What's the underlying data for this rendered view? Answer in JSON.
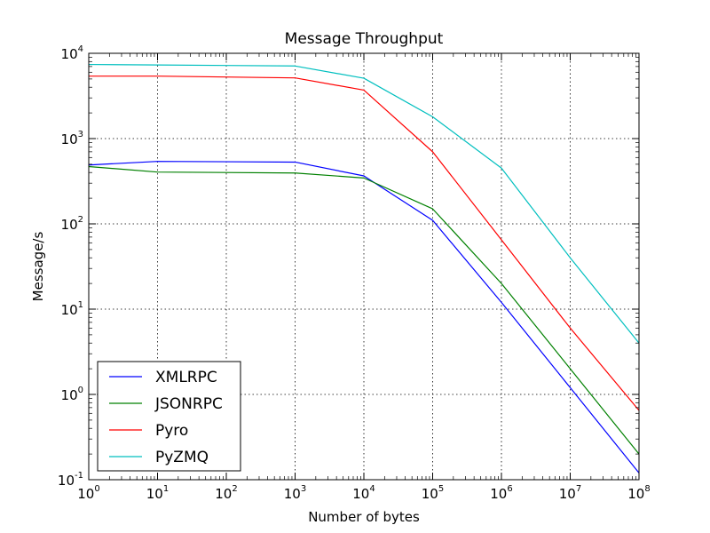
{
  "chart_data": {
    "type": "line",
    "title": "Message Throughput",
    "xlabel": "Number of bytes",
    "ylabel": "Message/s",
    "xscale": "log",
    "yscale": "log",
    "xlim": [
      1,
      100000000
    ],
    "ylim": [
      0.1,
      10000
    ],
    "x_ticks": [
      {
        "base": "10",
        "exp": "0"
      },
      {
        "base": "10",
        "exp": "1"
      },
      {
        "base": "10",
        "exp": "2"
      },
      {
        "base": "10",
        "exp": "3"
      },
      {
        "base": "10",
        "exp": "4"
      },
      {
        "base": "10",
        "exp": "5"
      },
      {
        "base": "10",
        "exp": "6"
      },
      {
        "base": "10",
        "exp": "7"
      },
      {
        "base": "10",
        "exp": "8"
      }
    ],
    "y_ticks": [
      {
        "base": "10",
        "exp": "-1"
      },
      {
        "base": "10",
        "exp": "0"
      },
      {
        "base": "10",
        "exp": "1"
      },
      {
        "base": "10",
        "exp": "2"
      },
      {
        "base": "10",
        "exp": "3"
      },
      {
        "base": "10",
        "exp": "4"
      }
    ],
    "grid": true,
    "legend_position": "lower-left",
    "series": [
      {
        "name": "XMLRPC",
        "color": "#0000ff",
        "x": [
          1,
          10,
          1000,
          10000,
          100000,
          1000000,
          10000000,
          100000000
        ],
        "values": [
          490,
          540,
          530,
          365,
          110,
          12,
          1.2,
          0.12
        ]
      },
      {
        "name": "JSONRPC",
        "color": "#008000",
        "x": [
          1,
          10,
          1000,
          10000,
          100000,
          1000000,
          10000000,
          100000000
        ],
        "values": [
          470,
          405,
          395,
          345,
          150,
          20,
          2,
          0.2
        ]
      },
      {
        "name": "Pyro",
        "color": "#ff0000",
        "x": [
          1,
          10,
          1000,
          10000,
          100000,
          1000000,
          10000000,
          100000000
        ],
        "values": [
          5400,
          5400,
          5150,
          3700,
          700,
          65,
          6,
          0.65
        ]
      },
      {
        "name": "PyZMQ",
        "color": "#00bfbf",
        "x": [
          1,
          10,
          1000,
          10000,
          100000,
          1000000,
          10000000,
          100000000
        ],
        "values": [
          7400,
          7300,
          7100,
          5100,
          1800,
          450,
          40,
          4
        ]
      }
    ]
  }
}
